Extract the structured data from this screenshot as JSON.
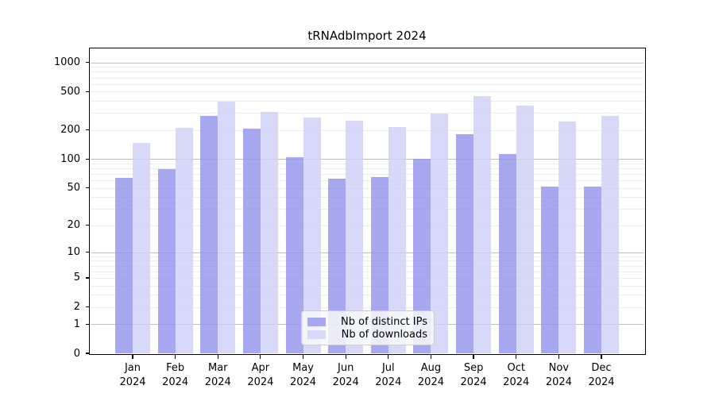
{
  "title": "tRNAdbImport 2024",
  "chart_data": {
    "type": "bar",
    "title": "tRNAdbImport 2024",
    "categories": [
      "Jan 2024",
      "Feb 2024",
      "Mar 2024",
      "Apr 2024",
      "May 2024",
      "Jun 2024",
      "Jul 2024",
      "Aug 2024",
      "Sep 2024",
      "Oct 2024",
      "Nov 2024",
      "Dec 2024"
    ],
    "series": [
      {
        "name": "Nb of distinct IPs",
        "color": "#a8a8f0",
        "bar_fill_rgba": "rgba(146,146,236,0.8)",
        "values": [
          63,
          79,
          280,
          208,
          105,
          62,
          65,
          100,
          181,
          113,
          51,
          51
        ]
      },
      {
        "name": "Nb of downloads",
        "color": "#d8d8f8",
        "bar_fill_rgba": "rgba(206,206,246,0.8)",
        "values": [
          148,
          211,
          393,
          307,
          271,
          252,
          216,
          296,
          453,
          356,
          245,
          281
        ]
      }
    ],
    "xlabel": "",
    "ylabel": "",
    "yscale": "log1p",
    "y_ticks": [
      0,
      1,
      2,
      5,
      10,
      20,
      50,
      100,
      200,
      500,
      1000
    ],
    "gridlines_major": [
      1,
      10,
      100,
      1000
    ],
    "gridlines_minor": [
      2,
      3,
      4,
      5,
      6,
      7,
      8,
      9,
      20,
      30,
      40,
      50,
      60,
      70,
      80,
      90,
      200,
      300,
      400,
      500,
      600,
      700,
      800,
      900
    ],
    "grid": true,
    "legend_position": "lower center inside"
  },
  "legend": {
    "items": [
      {
        "label": "Nb of distinct IPs"
      },
      {
        "label": "Nb of downloads"
      }
    ]
  }
}
